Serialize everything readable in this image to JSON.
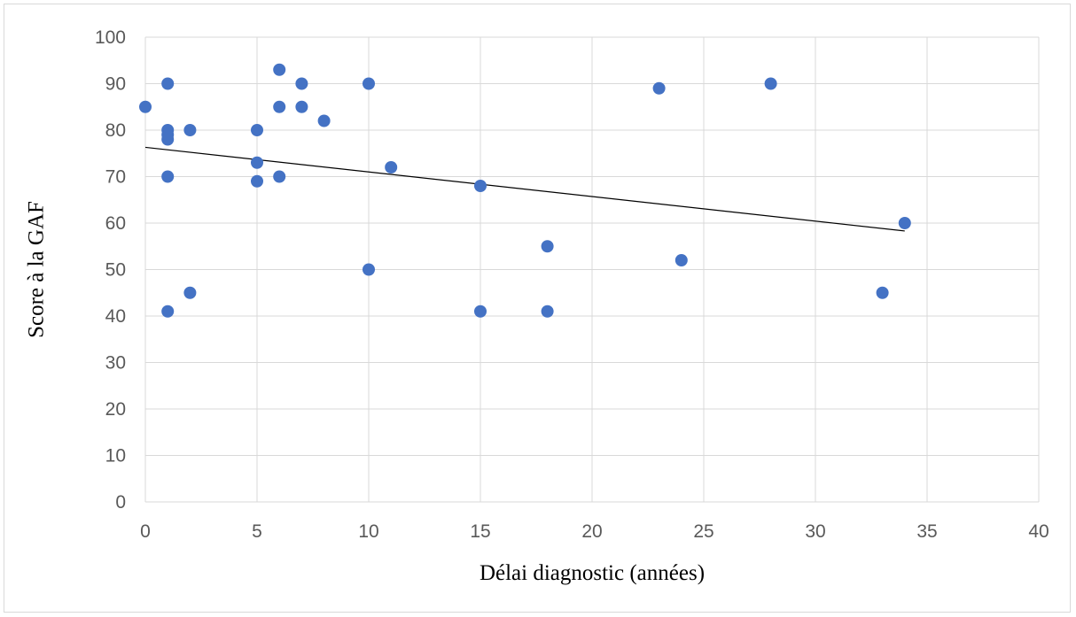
{
  "chart_data": {
    "type": "scatter",
    "xlabel": "Délai diagnostic (années)",
    "ylabel": "Score à la GAF",
    "xlim": [
      0,
      40
    ],
    "ylim": [
      0,
      100
    ],
    "x_ticks": [
      0,
      5,
      10,
      15,
      20,
      25,
      30,
      35,
      40
    ],
    "y_ticks": [
      0,
      10,
      20,
      30,
      40,
      50,
      60,
      70,
      80,
      90,
      100
    ],
    "grid": true,
    "legend": "none",
    "marker_color": "#4472C4",
    "trendline_color": "#000000",
    "series": [
      {
        "points": [
          [
            0,
            85
          ],
          [
            1,
            90
          ],
          [
            1,
            80
          ],
          [
            1,
            79
          ],
          [
            1,
            78
          ],
          [
            1,
            70
          ],
          [
            1,
            41
          ],
          [
            2,
            80
          ],
          [
            2,
            45
          ],
          [
            5,
            80
          ],
          [
            5,
            73
          ],
          [
            5,
            69
          ],
          [
            6,
            93
          ],
          [
            6,
            85
          ],
          [
            6,
            70
          ],
          [
            7,
            90
          ],
          [
            7,
            85
          ],
          [
            8,
            82
          ],
          [
            10,
            90
          ],
          [
            10,
            50
          ],
          [
            11,
            72
          ],
          [
            15,
            68
          ],
          [
            15,
            41
          ],
          [
            18,
            55
          ],
          [
            18,
            41
          ],
          [
            23,
            89
          ],
          [
            24,
            52
          ],
          [
            28,
            90
          ],
          [
            33,
            45
          ],
          [
            34,
            60
          ]
        ]
      }
    ],
    "trendline": {
      "type": "linear",
      "x_start": 0,
      "y_start": 76.3,
      "x_end": 34,
      "y_end": 58.3
    }
  }
}
